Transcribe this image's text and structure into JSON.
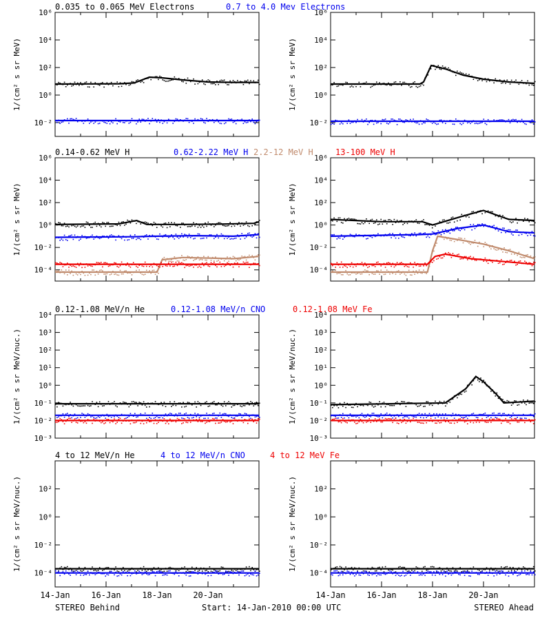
{
  "page": {
    "footer": {
      "left": "STEREO Behind",
      "center": "Start: 14-Jan-2010 00:00 UTC",
      "right": "STEREO Ahead"
    }
  },
  "chart_data": [
    {
      "type": "scatter",
      "row": 1,
      "ylabel": "1/(cm² s sr MeV)",
      "y_log": true,
      "ylim_exp": [
        -3,
        6
      ],
      "ytick_labels": [
        "10⁻²",
        "10⁰",
        "10²",
        "10⁴",
        "10⁶"
      ],
      "ytick_exp": [
        -2,
        0,
        2,
        4,
        6
      ],
      "legend": [
        {
          "name": "0.035 to 0.065 MeV Electrons",
          "color": "#000000"
        },
        {
          "name": "0.7 to 4.0 Mev Electrons",
          "color": "#0000ee"
        }
      ],
      "panels": {
        "behind": [
          {
            "color": "#000000",
            "points": [
              [
                0,
                0.8
              ],
              [
                2.5,
                0.82
              ],
              [
                3.1,
                0.88
              ],
              [
                3.7,
                1.3
              ],
              [
                4.2,
                1.25
              ],
              [
                5,
                1.1
              ],
              [
                6,
                0.95
              ],
              [
                7,
                0.92
              ],
              [
                8,
                0.92
              ]
            ]
          },
          {
            "color": "#0000ee",
            "points": [
              [
                0,
                -1.85
              ],
              [
                8,
                -1.85
              ]
            ]
          }
        ],
        "ahead": [
          {
            "color": "#000000",
            "points": [
              [
                0,
                0.8
              ],
              [
                3.5,
                0.8
              ],
              [
                3.65,
                0.95
              ],
              [
                3.95,
                2.15
              ],
              [
                4.5,
                1.9
              ],
              [
                5.2,
                1.45
              ],
              [
                6,
                1.15
              ],
              [
                7,
                0.95
              ],
              [
                8,
                0.85
              ]
            ]
          },
          {
            "color": "#0000ee",
            "points": [
              [
                0,
                -1.9
              ],
              [
                8,
                -1.9
              ]
            ]
          }
        ]
      }
    },
    {
      "type": "scatter",
      "row": 2,
      "ylabel": "1/(cm² s sr MeV)",
      "y_log": true,
      "ylim_exp": [
        -5,
        6
      ],
      "ytick_labels": [
        "10⁻⁴",
        "10⁻²",
        "10⁰",
        "10²",
        "10⁴",
        "10⁶"
      ],
      "ytick_exp": [
        -4,
        -2,
        0,
        2,
        4,
        6
      ],
      "legend": [
        {
          "name": "0.14-0.62 MeV H",
          "color": "#000000"
        },
        {
          "name": "0.62-2.22 MeV H",
          "color": "#0000ee"
        },
        {
          "name": "2.2-12 MeV H",
          "color": "#c08a6c"
        },
        {
          "name": "13-100 MeV H",
          "color": "#ee0000"
        }
      ],
      "panels": {
        "behind": [
          {
            "color": "#000000",
            "points": [
              [
                0,
                0.05
              ],
              [
                2.5,
                0.1
              ],
              [
                3.2,
                0.4
              ],
              [
                3.6,
                0.05
              ],
              [
                5,
                0.05
              ],
              [
                6.5,
                0.08
              ],
              [
                7.8,
                0.15
              ],
              [
                8,
                0.3
              ]
            ]
          },
          {
            "color": "#0000ee",
            "points": [
              [
                0,
                -1.1
              ],
              [
                3,
                -1.05
              ],
              [
                4,
                -1.0
              ],
              [
                5.5,
                -0.95
              ],
              [
                7,
                -1.0
              ],
              [
                8,
                -0.85
              ]
            ]
          },
          {
            "color": "#c08a6c",
            "points": [
              [
                0,
                -4.2
              ],
              [
                4.0,
                -4.2
              ],
              [
                4.2,
                -3.1
              ],
              [
                5,
                -2.9
              ],
              [
                6,
                -2.95
              ],
              [
                7,
                -3.0
              ],
              [
                8,
                -2.8
              ]
            ]
          },
          {
            "color": "#ee0000",
            "points": [
              [
                0,
                -3.5
              ],
              [
                8,
                -3.5
              ]
            ]
          }
        ],
        "ahead": [
          {
            "color": "#000000",
            "points": [
              [
                0,
                0.5
              ],
              [
                2,
                0.3
              ],
              [
                3.6,
                0.3
              ],
              [
                4.0,
                0.0
              ],
              [
                5.2,
                0.8
              ],
              [
                6.0,
                1.3
              ],
              [
                6.5,
                0.9
              ],
              [
                7,
                0.5
              ],
              [
                8,
                0.4
              ]
            ]
          },
          {
            "color": "#0000ee",
            "points": [
              [
                0,
                -1.0
              ],
              [
                3.5,
                -0.85
              ],
              [
                4.0,
                -0.8
              ],
              [
                5,
                -0.3
              ],
              [
                6,
                0.0
              ],
              [
                7,
                -0.6
              ],
              [
                8,
                -0.7
              ]
            ]
          },
          {
            "color": "#c08a6c",
            "points": [
              [
                0,
                -4.2
              ],
              [
                3.8,
                -4.2
              ],
              [
                4.0,
                -2.3
              ],
              [
                4.2,
                -1.0
              ],
              [
                5,
                -1.3
              ],
              [
                6,
                -1.7
              ],
              [
                7,
                -2.3
              ],
              [
                8,
                -3.0
              ]
            ]
          },
          {
            "color": "#ee0000",
            "points": [
              [
                0,
                -3.5
              ],
              [
                3.8,
                -3.5
              ],
              [
                4.1,
                -2.8
              ],
              [
                4.5,
                -2.6
              ],
              [
                5.5,
                -3.0
              ],
              [
                7,
                -3.3
              ],
              [
                8,
                -3.5
              ]
            ]
          }
        ]
      }
    },
    {
      "type": "scatter",
      "row": 3,
      "ylabel": "1/(cm² s sr MeV/nuc.)",
      "y_log": true,
      "ylim_exp": [
        -3,
        4
      ],
      "ytick_labels": [
        "10⁻³",
        "10⁻²",
        "10⁻¹",
        "10⁰",
        "10¹",
        "10²",
        "10³",
        "10⁴"
      ],
      "ytick_exp": [
        -3,
        -2,
        -1,
        0,
        1,
        2,
        3,
        4
      ],
      "legend": [
        {
          "name": "0.12-1.08 MeV/n He",
          "color": "#000000"
        },
        {
          "name": "0.12-1.08 MeV/n CNO",
          "color": "#0000ee"
        },
        {
          "name": "0.12-1.08 MeV Fe",
          "color": "#ee0000"
        }
      ],
      "panels": {
        "behind": [
          {
            "color": "#000000",
            "points": [
              [
                0,
                -1.05
              ],
              [
                8,
                -1.05
              ]
            ]
          },
          {
            "color": "#0000ee",
            "points": [
              [
                0,
                -1.7
              ],
              [
                8,
                -1.7
              ]
            ]
          },
          {
            "color": "#ee0000",
            "points": [
              [
                0,
                -2.0
              ],
              [
                8,
                -2.0
              ]
            ]
          }
        ],
        "ahead": [
          {
            "color": "#000000",
            "points": [
              [
                0,
                -1.1
              ],
              [
                4.5,
                -1.0
              ],
              [
                5.3,
                -0.2
              ],
              [
                5.7,
                0.5
              ],
              [
                6.0,
                0.2
              ],
              [
                6.5,
                -0.5
              ],
              [
                6.8,
                -1.0
              ],
              [
                8,
                -0.9
              ]
            ]
          },
          {
            "color": "#0000ee",
            "points": [
              [
                0,
                -1.7
              ],
              [
                8,
                -1.7
              ]
            ]
          },
          {
            "color": "#ee0000",
            "points": [
              [
                0,
                -2.0
              ],
              [
                8,
                -2.0
              ]
            ]
          }
        ]
      }
    },
    {
      "type": "scatter",
      "row": 4,
      "ylabel": "1/(cm² s sr MeV/nuc.)",
      "y_log": true,
      "ylim_exp": [
        -5,
        4
      ],
      "ytick_labels": [
        "10⁻⁴",
        "10⁻²",
        "10⁰",
        "10²"
      ],
      "ytick_exp": [
        -4,
        -2,
        0,
        2
      ],
      "legend": [
        {
          "name": "4 to 12 MeV/n He",
          "color": "#000000"
        },
        {
          "name": "4 to 12 MeV/n CNO",
          "color": "#0000ee"
        },
        {
          "name": "4 to 12 MeV Fe",
          "color": "#ee0000"
        }
      ],
      "panels": {
        "behind": [
          {
            "color": "#000000",
            "points": [
              [
                0,
                -3.7
              ],
              [
                8,
                -3.7
              ]
            ]
          },
          {
            "color": "#0000ee",
            "points": [
              [
                0,
                -4.0
              ],
              [
                8,
                -4.0
              ]
            ]
          }
        ],
        "ahead": [
          {
            "color": "#000000",
            "points": [
              [
                0,
                -3.7
              ],
              [
                8,
                -3.7
              ]
            ]
          },
          {
            "color": "#0000ee",
            "points": [
              [
                0,
                -4.0
              ],
              [
                8,
                -4.0
              ]
            ]
          }
        ]
      }
    }
  ],
  "x_axis": {
    "range_days": [
      0,
      8
    ],
    "tick_labels": [
      "14-Jan",
      "16-Jan",
      "18-Jan",
      "20-Jan"
    ],
    "tick_days": [
      0,
      2,
      4,
      6
    ]
  }
}
